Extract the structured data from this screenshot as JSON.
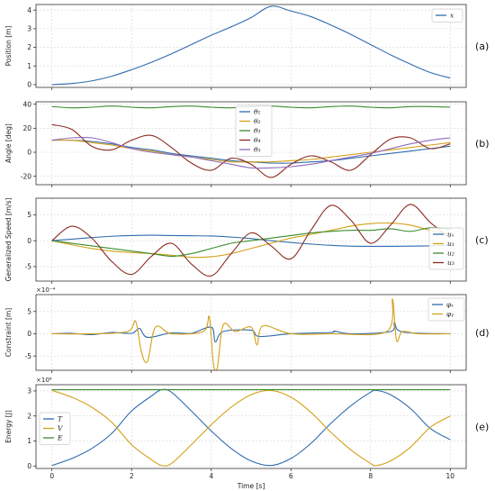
{
  "chart_data": [
    {
      "type": "line",
      "panel": "(a)",
      "ylabel": "Position [m]",
      "xlim": [
        -0.4,
        10.4
      ],
      "ylim": [
        -0.15,
        4.3
      ],
      "yticks": [
        0,
        1,
        2,
        3,
        4
      ],
      "grid": true,
      "legend": "top-right",
      "series": [
        {
          "name": "x",
          "color": "#2f6bad",
          "x": [
            0,
            0.5,
            1,
            1.5,
            2,
            2.5,
            3,
            3.5,
            4,
            4.5,
            5,
            5.5,
            6,
            6.5,
            7,
            7.5,
            8,
            8.5,
            9,
            9.5,
            10
          ],
          "y": [
            0.0,
            0.06,
            0.2,
            0.45,
            0.8,
            1.2,
            1.65,
            2.15,
            2.65,
            3.1,
            3.6,
            4.2,
            3.95,
            3.65,
            3.2,
            2.7,
            2.15,
            1.6,
            1.1,
            0.65,
            0.35
          ]
        }
      ]
    },
    {
      "type": "line",
      "panel": "(b)",
      "ylabel": "Angle [deg]",
      "xlim": [
        -0.4,
        10.4
      ],
      "ylim": [
        -27,
        42
      ],
      "yticks": [
        -20,
        0,
        20,
        40
      ],
      "grid": true,
      "legend": "top-center",
      "series": [
        {
          "name": "θ₁",
          "color": "#2f6bad",
          "x": [
            0,
            0.5,
            1,
            1.5,
            2,
            2.5,
            3,
            3.5,
            4,
            4.5,
            5,
            5.5,
            6,
            6.5,
            7,
            7.5,
            8,
            8.5,
            9,
            9.5,
            10
          ],
          "y": [
            10,
            10,
            9,
            7,
            4,
            2,
            -1,
            -3,
            -5,
            -7,
            -8,
            -9,
            -9,
            -8,
            -7,
            -5,
            -3,
            -1,
            1,
            3,
            5
          ]
        },
        {
          "name": "θ₂",
          "color": "#d4a017",
          "x": [
            0,
            0.5,
            1,
            1.5,
            2,
            2.5,
            3,
            3.5,
            4,
            4.5,
            5,
            5.5,
            6,
            6.5,
            7,
            7.5,
            8,
            8.5,
            9,
            9.5,
            10
          ],
          "y": [
            10,
            10,
            8,
            6,
            3,
            1,
            -2,
            -4,
            -6,
            -8,
            -8,
            -8,
            -7,
            -6,
            -4,
            -2,
            0,
            2,
            4,
            6,
            8
          ]
        },
        {
          "name": "θ₃",
          "color": "#3a8c2e",
          "x": [
            0,
            0.5,
            1,
            1.5,
            2,
            2.5,
            3,
            3.5,
            4,
            4.5,
            5,
            5.5,
            6,
            6.5,
            7,
            7.5,
            8,
            8.5,
            9,
            9.5,
            10
          ],
          "y": [
            38,
            37,
            37.5,
            38.5,
            37.5,
            37,
            38,
            38.5,
            37.5,
            37,
            38,
            38.5,
            37.5,
            37,
            38,
            38.5,
            37.5,
            37,
            38,
            38,
            37.5
          ]
        },
        {
          "name": "θ₄",
          "color": "#8b2a1f",
          "x": [
            0,
            0.5,
            1,
            1.5,
            2,
            2.5,
            3,
            3.5,
            4,
            4.5,
            5,
            5.5,
            6,
            6.5,
            7,
            7.5,
            8,
            8.5,
            9,
            9.5,
            10
          ],
          "y": [
            23,
            19,
            5,
            2,
            10,
            14,
            4,
            -9,
            -15,
            -5,
            -10,
            -21,
            -10,
            -3,
            -8,
            -15,
            -2,
            11,
            12,
            3,
            7
          ]
        },
        {
          "name": "θ₅",
          "color": "#8e6bbf",
          "x": [
            0,
            0.5,
            1,
            1.5,
            2,
            2.5,
            3,
            3.5,
            4,
            4.5,
            5,
            5.5,
            6,
            6.5,
            7,
            7.5,
            8,
            8.5,
            9,
            9.5,
            10
          ],
          "y": [
            10,
            12,
            12,
            8,
            3,
            0,
            -2,
            -4,
            -7,
            -10,
            -13,
            -13,
            -12,
            -10,
            -7,
            -4,
            -1,
            3,
            7,
            10,
            12
          ]
        }
      ]
    },
    {
      "type": "line",
      "panel": "(c)",
      "ylabel": "Generalized Speed [m/s]",
      "xlim": [
        -0.4,
        10.4
      ],
      "ylim": [
        -7.8,
        8.2
      ],
      "yticks": [
        -5,
        0,
        5
      ],
      "grid": true,
      "legend": "right",
      "series": [
        {
          "name": "uₓ",
          "color": "#2f6bad",
          "x": [
            0,
            0.5,
            1,
            1.5,
            2,
            2.5,
            3,
            3.5,
            4,
            4.5,
            5,
            5.5,
            6,
            6.5,
            7,
            7.5,
            8,
            8.5,
            9,
            9.5,
            10
          ],
          "y": [
            0,
            0.3,
            0.6,
            0.85,
            1.0,
            1.05,
            1.0,
            0.95,
            0.9,
            0.7,
            0.4,
            0.0,
            -0.35,
            -0.65,
            -0.9,
            -1.05,
            -1.1,
            -1.1,
            -1.05,
            -1.0,
            -0.9
          ]
        },
        {
          "name": "u₁",
          "color": "#d4a017",
          "x": [
            0,
            0.5,
            1,
            1.5,
            2,
            2.5,
            3,
            3.5,
            4,
            4.5,
            5,
            5.5,
            6,
            6.5,
            7,
            7.5,
            8,
            8.5,
            9,
            9.5,
            10
          ],
          "y": [
            0,
            -0.8,
            -1.5,
            -2.0,
            -2.3,
            -2.5,
            -2.8,
            -3.2,
            -3.1,
            -2.5,
            -1.5,
            -0.5,
            0.5,
            1.2,
            2.0,
            2.8,
            3.3,
            3.4,
            3.0,
            2.0,
            1.2
          ]
        },
        {
          "name": "u₂",
          "color": "#3a8c2e",
          "x": [
            0,
            0.5,
            1,
            1.5,
            2,
            2.5,
            3,
            3.5,
            4,
            4.5,
            5,
            5.5,
            6,
            6.5,
            7,
            7.5,
            8,
            8.5,
            9,
            9.5,
            10
          ],
          "y": [
            0,
            -0.5,
            -1.0,
            -1.5,
            -2.0,
            -2.5,
            -3.0,
            -2.5,
            -1.5,
            -0.5,
            0.0,
            0.5,
            1.0,
            1.5,
            1.8,
            2.0,
            2.0,
            2.3,
            1.8,
            2.5,
            2.2
          ]
        },
        {
          "name": "u₃",
          "color": "#8b2a1f",
          "x": [
            0,
            0.5,
            1,
            1.5,
            2,
            2.5,
            3,
            3.5,
            4,
            4.5,
            5,
            5.5,
            6,
            6.5,
            7,
            7.5,
            8,
            8.5,
            9,
            9.5,
            10
          ],
          "y": [
            0,
            2.8,
            0.5,
            -4.0,
            -6.5,
            -3.0,
            -0.5,
            -4.5,
            -6.8,
            -2.5,
            1.5,
            -1.0,
            -3.5,
            2.0,
            6.8,
            4.0,
            -0.5,
            3.0,
            7.0,
            3.5,
            0.5
          ]
        }
      ]
    },
    {
      "type": "line",
      "panel": "(d)",
      "ylabel": "Constraint [m]",
      "multiplier": "×10⁻⁴",
      "xlim": [
        -0.4,
        10.4
      ],
      "ylim": [
        -8.2,
        8.8
      ],
      "yticks": [
        -5,
        0,
        5
      ],
      "grid": true,
      "legend": "top-right",
      "series": [
        {
          "name": "φₓ",
          "color": "#2f6bad",
          "x": [
            0,
            0.5,
            1,
            1.5,
            2,
            2.2,
            2.4,
            3,
            3.5,
            4,
            4.1,
            4.3,
            5,
            5.2,
            6,
            7,
            7.1,
            7.5,
            8.5,
            8.6,
            8.8,
            10
          ],
          "y": [
            0,
            0.1,
            -0.2,
            0.3,
            0.1,
            1.2,
            -0.8,
            0.2,
            0.1,
            1.5,
            -1.8,
            0.5,
            0.8,
            -0.6,
            0,
            0.3,
            0.6,
            0,
            0.5,
            2.5,
            0.4,
            0
          ]
        },
        {
          "name": "φᵧ",
          "color": "#d4a017",
          "x": [
            0,
            1,
            1.9,
            2.1,
            2.25,
            2.4,
            2.6,
            3,
            3.8,
            3.95,
            4.05,
            4.15,
            4.3,
            4.6,
            5.0,
            5.15,
            5.3,
            6,
            7,
            8.4,
            8.55,
            8.65,
            8.8,
            9.2,
            10
          ],
          "y": [
            0,
            0,
            0.5,
            2.8,
            -4.2,
            -6.2,
            1.5,
            0,
            0.5,
            3.8,
            -6.5,
            -7.8,
            2.0,
            0.5,
            1.5,
            -2.5,
            1.8,
            0,
            0,
            0.5,
            7.8,
            -1.5,
            0.5,
            0,
            0
          ]
        }
      ]
    },
    {
      "type": "line",
      "panel": "(e)",
      "ylabel": "Energy [J]",
      "xlabel": "Time [s]",
      "multiplier": "×10⁶",
      "xlim": [
        -0.4,
        10.4
      ],
      "ylim": [
        -0.1,
        3.25
      ],
      "yticks": [
        0,
        1,
        2,
        3
      ],
      "xticks": [
        0,
        2,
        4,
        6,
        8,
        10
      ],
      "grid": true,
      "legend": "left",
      "series": [
        {
          "name": "T",
          "color": "#2f6bad",
          "x": [
            0,
            0.5,
            1,
            1.5,
            2,
            2.5,
            2.75,
            3,
            3.5,
            4,
            4.5,
            5,
            5.5,
            6,
            6.5,
            7,
            7.5,
            8,
            8.15,
            8.5,
            9,
            9.5,
            10
          ],
          "y": [
            0.02,
            0.3,
            0.7,
            1.3,
            2.2,
            2.8,
            3.05,
            2.95,
            2.2,
            1.4,
            0.7,
            0.2,
            0.02,
            0.3,
            0.9,
            1.7,
            2.4,
            2.95,
            3.02,
            2.85,
            2.3,
            1.5,
            1.05
          ]
        },
        {
          "name": "V",
          "color": "#d4a017",
          "x": [
            0,
            0.5,
            1,
            1.5,
            2,
            2.5,
            2.75,
            3,
            3.5,
            4,
            4.5,
            5,
            5.5,
            6,
            6.5,
            7,
            7.5,
            8,
            8.15,
            8.5,
            9,
            9.5,
            10
          ],
          "y": [
            3.02,
            2.75,
            2.35,
            1.75,
            0.85,
            0.25,
            0.02,
            0.1,
            0.85,
            1.65,
            2.35,
            2.85,
            3.02,
            2.75,
            2.15,
            1.35,
            0.65,
            0.1,
            0.02,
            0.2,
            0.75,
            1.55,
            2.0
          ]
        },
        {
          "name": "E",
          "color": "#3a8c2e",
          "x": [
            0,
            10
          ],
          "y": [
            3.05,
            3.05
          ]
        }
      ]
    }
  ],
  "panel_tags": [
    "(a)",
    "(b)",
    "(c)",
    "(d)",
    "(e)"
  ]
}
